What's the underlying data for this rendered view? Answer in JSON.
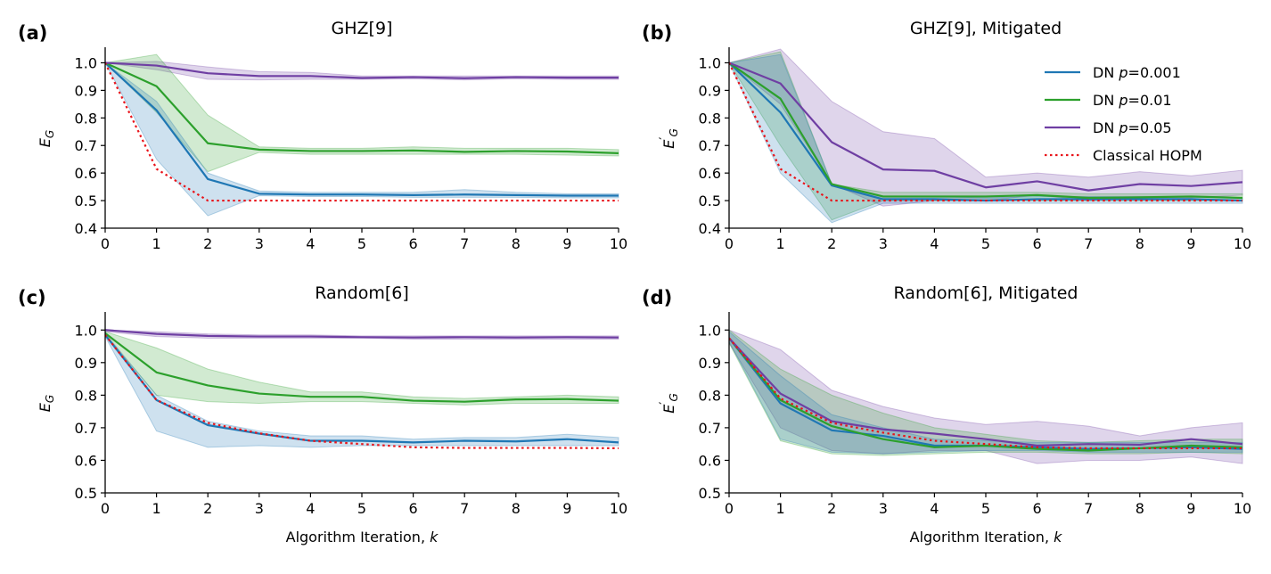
{
  "colors": {
    "dn_p0001": "#1f77b4",
    "dn_p001": "#2ca02c",
    "dn_p005": "#6f3fa3",
    "classical": "#e8141b"
  },
  "legend": [
    {
      "key": "dn_p0001",
      "prefix": "DN ",
      "italic": "p",
      "suffix": "=0.001",
      "style": "solid"
    },
    {
      "key": "dn_p001",
      "prefix": "DN ",
      "italic": "p",
      "suffix": "=0.01",
      "style": "solid"
    },
    {
      "key": "dn_p005",
      "prefix": "DN ",
      "italic": "p",
      "suffix": "=0.05",
      "style": "solid"
    },
    {
      "key": "classical",
      "prefix": "Classical HOPM",
      "italic": "",
      "suffix": "",
      "style": "dotted"
    }
  ],
  "chart_data": [
    {
      "type": "line",
      "letter": "(a)",
      "title": "GHZ[9]",
      "xlabel": "",
      "ylabel": {
        "base": "E",
        "sub": "G",
        "prime": false
      },
      "x": [
        0,
        1,
        2,
        3,
        4,
        5,
        6,
        7,
        8,
        9,
        10
      ],
      "xticks": [
        "0",
        "1",
        "2",
        "3",
        "4",
        "5",
        "6",
        "7",
        "8",
        "9",
        "10"
      ],
      "ylim": [
        0.4,
        1.05
      ],
      "yticks": [
        0.4,
        0.5,
        0.6,
        0.7,
        0.8,
        0.9,
        1.0
      ],
      "ytick_labels": [
        "0.4",
        "0.5",
        "0.6",
        "0.7",
        "0.8",
        "0.9",
        "1.0"
      ],
      "show_legend": false,
      "series": [
        {
          "key": "dn_p0001",
          "name": "DN p=0.001",
          "values": [
            1.0,
            0.828,
            0.578,
            0.525,
            0.522,
            0.522,
            0.52,
            0.522,
            0.52,
            0.518,
            0.518
          ],
          "lower": [
            1.0,
            0.65,
            0.445,
            0.518,
            0.515,
            0.515,
            0.512,
            0.512,
            0.512,
            0.51,
            0.51
          ],
          "upper": [
            1.0,
            0.86,
            0.6,
            0.535,
            0.53,
            0.53,
            0.53,
            0.54,
            0.53,
            0.525,
            0.525
          ]
        },
        {
          "key": "dn_p001",
          "name": "DN p=0.01",
          "values": [
            1.0,
            0.915,
            0.708,
            0.685,
            0.68,
            0.68,
            0.682,
            0.677,
            0.68,
            0.678,
            0.672
          ],
          "lower": [
            1.0,
            0.82,
            0.605,
            0.675,
            0.668,
            0.668,
            0.668,
            0.668,
            0.668,
            0.665,
            0.662
          ],
          "upper": [
            1.0,
            1.03,
            0.81,
            0.695,
            0.69,
            0.69,
            0.695,
            0.69,
            0.69,
            0.69,
            0.685
          ]
        },
        {
          "key": "dn_p005",
          "name": "DN p=0.05",
          "values": [
            1.0,
            0.99,
            0.962,
            0.952,
            0.952,
            0.945,
            0.948,
            0.944,
            0.948,
            0.946,
            0.946
          ],
          "lower": [
            1.0,
            0.975,
            0.94,
            0.938,
            0.94,
            0.94,
            0.942,
            0.938,
            0.942,
            0.94,
            0.94
          ],
          "upper": [
            1.0,
            1.005,
            0.985,
            0.968,
            0.965,
            0.952,
            0.952,
            0.952,
            0.952,
            0.952,
            0.952
          ]
        },
        {
          "key": "classical",
          "name": "Classical HOPM",
          "values": [
            1.0,
            0.615,
            0.5,
            0.5,
            0.5,
            0.5,
            0.5,
            0.5,
            0.5,
            0.5,
            0.5
          ]
        }
      ]
    },
    {
      "type": "line",
      "letter": "(b)",
      "title": "GHZ[9], Mitigated",
      "xlabel": "",
      "ylabel": {
        "base": "E",
        "sub": "G",
        "prime": true
      },
      "x": [
        0,
        1,
        2,
        3,
        4,
        5,
        6,
        7,
        8,
        9,
        10
      ],
      "xticks": [
        "0",
        "1",
        "2",
        "3",
        "4",
        "5",
        "6",
        "7",
        "8",
        "9",
        "10"
      ],
      "ylim": [
        0.4,
        1.05
      ],
      "yticks": [
        0.4,
        0.5,
        0.6,
        0.7,
        0.8,
        0.9,
        1.0
      ],
      "ytick_labels": [
        "0.4",
        "0.5",
        "0.6",
        "0.7",
        "0.8",
        "0.9",
        "1.0"
      ],
      "show_legend": true,
      "series": [
        {
          "key": "dn_p0001",
          "name": "DN p=0.001",
          "values": [
            1.0,
            0.82,
            0.555,
            0.505,
            0.505,
            0.5,
            0.505,
            0.505,
            0.505,
            0.505,
            0.5
          ],
          "lower": [
            1.0,
            0.6,
            0.42,
            0.49,
            0.49,
            0.49,
            0.49,
            0.49,
            0.49,
            0.49,
            0.49
          ],
          "upper": [
            1.0,
            1.03,
            0.56,
            0.515,
            0.515,
            0.51,
            0.515,
            0.515,
            0.515,
            0.515,
            0.51
          ]
        },
        {
          "key": "dn_p001",
          "name": "DN p=0.01",
          "values": [
            1.0,
            0.87,
            0.56,
            0.515,
            0.515,
            0.515,
            0.52,
            0.51,
            0.512,
            0.515,
            0.51
          ],
          "lower": [
            1.0,
            0.7,
            0.43,
            0.5,
            0.5,
            0.5,
            0.5,
            0.5,
            0.5,
            0.5,
            0.5
          ],
          "upper": [
            1.0,
            1.04,
            0.56,
            0.53,
            0.53,
            0.53,
            0.53,
            0.525,
            0.525,
            0.525,
            0.525
          ]
        },
        {
          "key": "dn_p005",
          "name": "DN p=0.05",
          "values": [
            1.0,
            0.925,
            0.712,
            0.613,
            0.608,
            0.548,
            0.57,
            0.537,
            0.56,
            0.553,
            0.567
          ],
          "lower": [
            1.0,
            0.85,
            0.56,
            0.48,
            0.5,
            0.5,
            0.52,
            0.5,
            0.51,
            0.51,
            0.52
          ],
          "upper": [
            1.0,
            1.05,
            0.86,
            0.75,
            0.725,
            0.585,
            0.6,
            0.585,
            0.605,
            0.59,
            0.61
          ]
        },
        {
          "key": "classical",
          "name": "Classical HOPM",
          "values": [
            1.0,
            0.615,
            0.5,
            0.5,
            0.5,
            0.5,
            0.5,
            0.5,
            0.5,
            0.5,
            0.5
          ]
        }
      ]
    },
    {
      "type": "line",
      "letter": "(c)",
      "title": "Random[6]",
      "xlabel": "Algorithm Iteration, k",
      "xlabel_prefix": "Algorithm Iteration, ",
      "xlabel_italic": "k",
      "ylabel": {
        "base": "E",
        "sub": "G",
        "prime": false
      },
      "x": [
        0,
        1,
        2,
        3,
        4,
        5,
        6,
        7,
        8,
        9,
        10
      ],
      "xticks": [
        "0",
        "1",
        "2",
        "3",
        "4",
        "5",
        "6",
        "7",
        "8",
        "9",
        "10"
      ],
      "ylim": [
        0.5,
        1.05
      ],
      "yticks": [
        0.5,
        0.6,
        0.7,
        0.8,
        0.9,
        1.0
      ],
      "ytick_labels": [
        "0.5",
        "0.6",
        "0.7",
        "0.8",
        "0.9",
        "1.0"
      ],
      "show_legend": false,
      "series": [
        {
          "key": "dn_p0001",
          "name": "DN p=0.001",
          "values": [
            0.985,
            0.785,
            0.708,
            0.682,
            0.66,
            0.66,
            0.655,
            0.66,
            0.658,
            0.665,
            0.655
          ],
          "lower": [
            0.98,
            0.69,
            0.64,
            0.645,
            0.64,
            0.645,
            0.645,
            0.645,
            0.645,
            0.645,
            0.645
          ],
          "upper": [
            0.99,
            0.8,
            0.72,
            0.69,
            0.675,
            0.675,
            0.665,
            0.67,
            0.67,
            0.68,
            0.67
          ]
        },
        {
          "key": "dn_p001",
          "name": "DN p=0.01",
          "values": [
            0.99,
            0.87,
            0.83,
            0.805,
            0.795,
            0.795,
            0.783,
            0.78,
            0.787,
            0.788,
            0.783
          ],
          "lower": [
            0.985,
            0.8,
            0.78,
            0.775,
            0.78,
            0.78,
            0.775,
            0.77,
            0.775,
            0.775,
            0.775
          ],
          "upper": [
            0.995,
            0.945,
            0.88,
            0.84,
            0.81,
            0.81,
            0.795,
            0.79,
            0.795,
            0.8,
            0.795
          ]
        },
        {
          "key": "dn_p005",
          "name": "DN p=0.05",
          "values": [
            1.0,
            0.988,
            0.982,
            0.98,
            0.98,
            0.978,
            0.977,
            0.978,
            0.977,
            0.978,
            0.977
          ],
          "lower": [
            0.995,
            0.98,
            0.975,
            0.975,
            0.975,
            0.975,
            0.972,
            0.972,
            0.972,
            0.972,
            0.972
          ],
          "upper": [
            1.0,
            0.995,
            0.988,
            0.985,
            0.985,
            0.982,
            0.982,
            0.982,
            0.982,
            0.982,
            0.982
          ]
        },
        {
          "key": "classical",
          "name": "Classical HOPM",
          "values": [
            0.985,
            0.785,
            0.715,
            0.683,
            0.66,
            0.65,
            0.64,
            0.638,
            0.638,
            0.638,
            0.637
          ]
        }
      ]
    },
    {
      "type": "line",
      "letter": "(d)",
      "title": "Random[6], Mitigated",
      "xlabel": "Algorithm Iteration, k",
      "xlabel_prefix": "Algorithm Iteration, ",
      "xlabel_italic": "k",
      "ylabel": {
        "base": "E",
        "sub": "G",
        "prime": true
      },
      "x": [
        0,
        1,
        2,
        3,
        4,
        5,
        6,
        7,
        8,
        9,
        10
      ],
      "xticks": [
        "0",
        "1",
        "2",
        "3",
        "4",
        "5",
        "6",
        "7",
        "8",
        "9",
        "10"
      ],
      "ylim": [
        0.5,
        1.05
      ],
      "yticks": [
        0.5,
        0.6,
        0.7,
        0.8,
        0.9,
        1.0
      ],
      "ytick_labels": [
        "0.5",
        "0.6",
        "0.7",
        "0.8",
        "0.9",
        "1.0"
      ],
      "show_legend": false,
      "series": [
        {
          "key": "dn_p0001",
          "name": "DN p=0.001",
          "values": [
            0.975,
            0.775,
            0.692,
            0.675,
            0.645,
            0.645,
            0.64,
            0.635,
            0.637,
            0.64,
            0.635
          ],
          "lower": [
            0.965,
            0.665,
            0.625,
            0.62,
            0.625,
            0.63,
            0.63,
            0.625,
            0.625,
            0.625,
            0.625
          ],
          "upper": [
            0.995,
            0.86,
            0.74,
            0.7,
            0.665,
            0.66,
            0.655,
            0.655,
            0.655,
            0.655,
            0.655
          ]
        },
        {
          "key": "dn_p001",
          "name": "DN p=0.01",
          "values": [
            0.975,
            0.785,
            0.705,
            0.665,
            0.64,
            0.645,
            0.635,
            0.63,
            0.637,
            0.645,
            0.64
          ],
          "lower": [
            0.96,
            0.66,
            0.62,
            0.615,
            0.62,
            0.625,
            0.625,
            0.62,
            0.62,
            0.625,
            0.62
          ],
          "upper": [
            1.0,
            0.88,
            0.8,
            0.745,
            0.7,
            0.68,
            0.66,
            0.655,
            0.66,
            0.665,
            0.665
          ]
        },
        {
          "key": "dn_p005",
          "name": "DN p=0.05",
          "values": [
            0.975,
            0.805,
            0.72,
            0.695,
            0.682,
            0.665,
            0.645,
            0.65,
            0.648,
            0.665,
            0.65
          ],
          "lower": [
            0.96,
            0.7,
            0.63,
            0.62,
            0.63,
            0.63,
            0.59,
            0.6,
            0.6,
            0.61,
            0.59
          ],
          "upper": [
            1.0,
            0.94,
            0.815,
            0.765,
            0.73,
            0.71,
            0.72,
            0.705,
            0.675,
            0.7,
            0.715
          ]
        },
        {
          "key": "classical",
          "name": "Classical HOPM",
          "values": [
            0.975,
            0.79,
            0.715,
            0.685,
            0.66,
            0.65,
            0.64,
            0.637,
            0.637,
            0.637,
            0.637
          ]
        }
      ]
    }
  ]
}
